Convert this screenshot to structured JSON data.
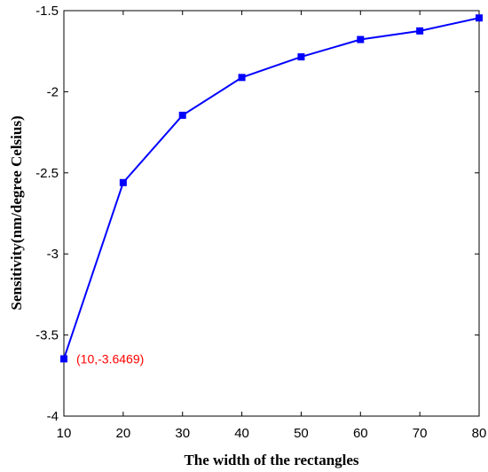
{
  "chart_data": {
    "type": "line",
    "xlabel": "The width of the rectangles",
    "ylabel": "Sensitivity(nm/degree Celsius)",
    "xlim": [
      10,
      80
    ],
    "ylim": [
      -4,
      -1.5
    ],
    "xticks": [
      "10",
      "20",
      "30",
      "40",
      "50",
      "60",
      "70",
      "80"
    ],
    "yticks": [
      "-1.5",
      "-2",
      "-2.5",
      "-3",
      "-3.5",
      "-4"
    ],
    "grid": false,
    "series": [
      {
        "color": "#0000ff",
        "marker": "square",
        "x": [
          10,
          20,
          30,
          40,
          50,
          60,
          70,
          80
        ],
        "y": [
          -3.6469,
          -2.56,
          -2.145,
          -1.912,
          -1.785,
          -1.678,
          -1.625,
          -1.545
        ]
      }
    ],
    "annotations": [
      {
        "text": "(10,-3.6469)",
        "x": 10,
        "y": -3.6469,
        "color": "#ff0000"
      }
    ]
  }
}
